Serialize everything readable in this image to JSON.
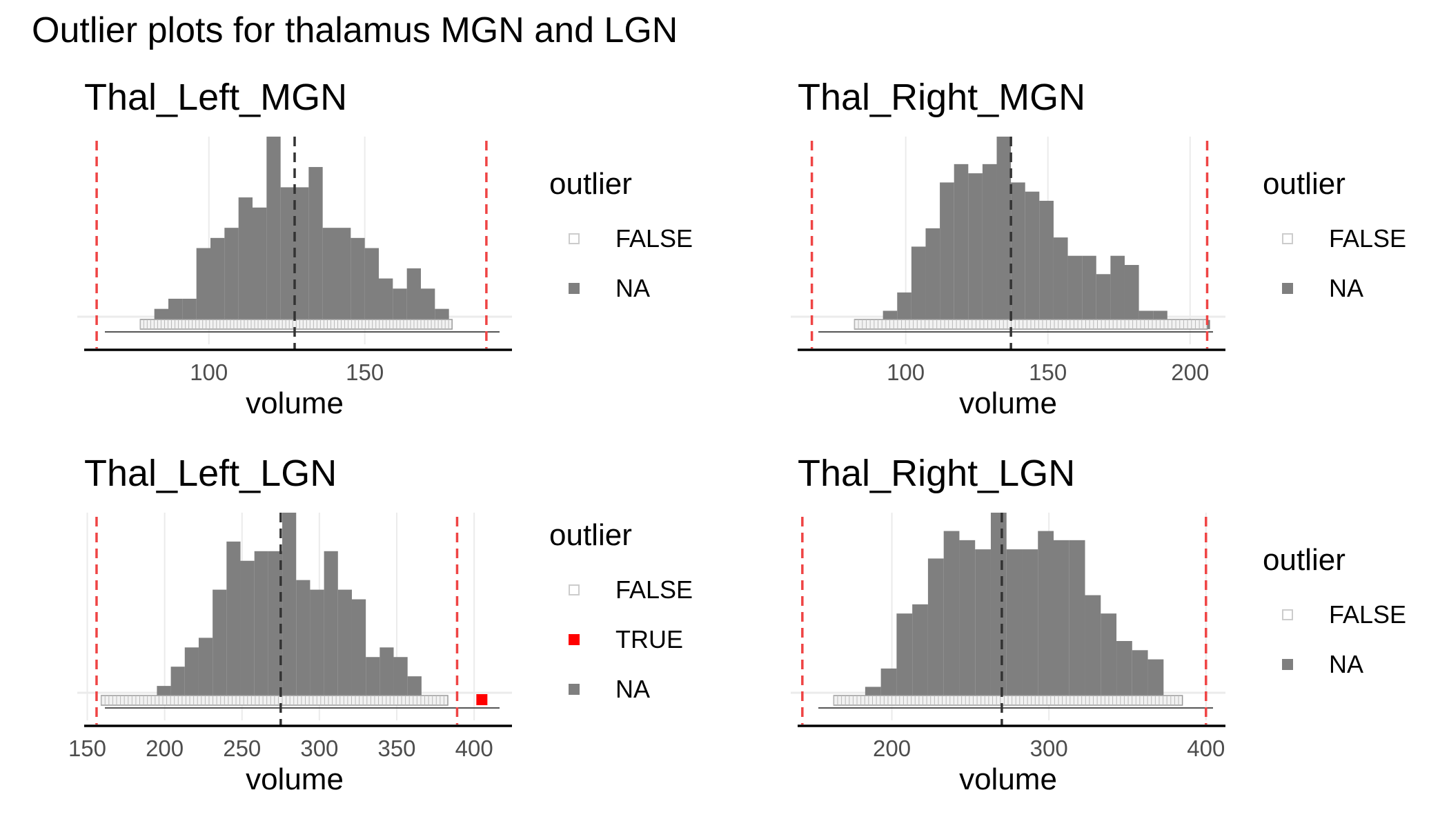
{
  "figure_title": "Outlier plots for thalamus MGN and LGN",
  "colors": {
    "bar": "#7f7f7f",
    "threshold_line": "#ef4444",
    "center_line": "#333333",
    "grid": "#ebebeb",
    "outlier_true": "#ff0000",
    "outlier_false_fill": "#ffffff",
    "outlier_false_stroke": "#cccccc"
  },
  "chart_data": [
    {
      "type": "bar",
      "title": "Thal_Left_MGN",
      "xlabel": "volume",
      "ylabel": "",
      "xlim": [
        60,
        195
      ],
      "xticks": [
        100,
        150
      ],
      "xtick_labels": [
        "100",
        "150"
      ],
      "bin_width": 4.5,
      "bins": [
        {
          "x": 78,
          "count": 1
        },
        {
          "x": 82.5,
          "count": 2
        },
        {
          "x": 87,
          "count": 3
        },
        {
          "x": 91.5,
          "count": 3
        },
        {
          "x": 96,
          "count": 8
        },
        {
          "x": 100.5,
          "count": 9
        },
        {
          "x": 105,
          "count": 10
        },
        {
          "x": 109.5,
          "count": 13
        },
        {
          "x": 114,
          "count": 12
        },
        {
          "x": 118.5,
          "count": 19
        },
        {
          "x": 123,
          "count": 14
        },
        {
          "x": 127.5,
          "count": 14
        },
        {
          "x": 132,
          "count": 16
        },
        {
          "x": 136.5,
          "count": 10
        },
        {
          "x": 141,
          "count": 10
        },
        {
          "x": 145.5,
          "count": 9
        },
        {
          "x": 150,
          "count": 8
        },
        {
          "x": 154.5,
          "count": 5
        },
        {
          "x": 159,
          "count": 4
        },
        {
          "x": 163.5,
          "count": 6
        },
        {
          "x": 168,
          "count": 4
        },
        {
          "x": 172.5,
          "count": 2
        },
        {
          "x": 177,
          "count": 0
        }
      ],
      "center_line": 127.5,
      "threshold_lines": [
        64,
        189
      ],
      "rug_range": [
        78,
        178
      ],
      "outliers": [],
      "legend": {
        "title": "outlier",
        "items": [
          {
            "label": "FALSE",
            "key": "false"
          },
          {
            "label": "NA",
            "key": "na"
          }
        ]
      },
      "grid": true
    },
    {
      "type": "bar",
      "title": "Thal_Right_MGN",
      "xlabel": "volume",
      "ylabel": "",
      "xlim": [
        62,
        210
      ],
      "xticks": [
        100,
        150,
        200
      ],
      "xtick_labels": [
        "100",
        "150",
        "200"
      ],
      "bin_width": 5,
      "bins": [
        {
          "x": 82,
          "count": 0
        },
        {
          "x": 87,
          "count": 1
        },
        {
          "x": 92,
          "count": 2
        },
        {
          "x": 97,
          "count": 4
        },
        {
          "x": 102,
          "count": 9
        },
        {
          "x": 107,
          "count": 11
        },
        {
          "x": 112,
          "count": 16
        },
        {
          "x": 117,
          "count": 18
        },
        {
          "x": 122,
          "count": 17
        },
        {
          "x": 127,
          "count": 18
        },
        {
          "x": 132,
          "count": 21
        },
        {
          "x": 137,
          "count": 16
        },
        {
          "x": 142,
          "count": 15
        },
        {
          "x": 147,
          "count": 14
        },
        {
          "x": 152,
          "count": 10
        },
        {
          "x": 157,
          "count": 8
        },
        {
          "x": 162,
          "count": 8
        },
        {
          "x": 167,
          "count": 6
        },
        {
          "x": 172,
          "count": 8
        },
        {
          "x": 177,
          "count": 7
        },
        {
          "x": 182,
          "count": 2
        },
        {
          "x": 187,
          "count": 2
        },
        {
          "x": 192,
          "count": 1
        },
        {
          "x": 197,
          "count": 0
        },
        {
          "x": 202,
          "count": 1
        }
      ],
      "center_line": 137,
      "threshold_lines": [
        67,
        206
      ],
      "rug_range": [
        82,
        206
      ],
      "outliers": [],
      "legend": {
        "title": "outlier",
        "items": [
          {
            "label": "FALSE",
            "key": "false"
          },
          {
            "label": "NA",
            "key": "na"
          }
        ]
      },
      "grid": true
    },
    {
      "type": "bar",
      "title": "Thal_Left_LGN",
      "xlabel": "volume",
      "ylabel": "",
      "xlim": [
        148,
        420
      ],
      "xticks": [
        150,
        200,
        250,
        300,
        350,
        400
      ],
      "xtick_labels": [
        "150",
        "200",
        "250",
        "300",
        "350",
        "400"
      ],
      "bin_width": 9,
      "bins": [
        {
          "x": 159,
          "count": 0
        },
        {
          "x": 168,
          "count": 0
        },
        {
          "x": 177,
          "count": 0
        },
        {
          "x": 186,
          "count": 1
        },
        {
          "x": 195,
          "count": 2
        },
        {
          "x": 204,
          "count": 4
        },
        {
          "x": 213,
          "count": 6
        },
        {
          "x": 222,
          "count": 7
        },
        {
          "x": 231,
          "count": 12
        },
        {
          "x": 240,
          "count": 17
        },
        {
          "x": 249,
          "count": 15
        },
        {
          "x": 258,
          "count": 16
        },
        {
          "x": 267,
          "count": 16
        },
        {
          "x": 276,
          "count": 20
        },
        {
          "x": 285,
          "count": 13
        },
        {
          "x": 294,
          "count": 12
        },
        {
          "x": 303,
          "count": 16
        },
        {
          "x": 312,
          "count": 12
        },
        {
          "x": 321,
          "count": 11
        },
        {
          "x": 330,
          "count": 5
        },
        {
          "x": 339,
          "count": 6
        },
        {
          "x": 348,
          "count": 5
        },
        {
          "x": 357,
          "count": 3
        },
        {
          "x": 366,
          "count": 1
        },
        {
          "x": 375,
          "count": 0
        }
      ],
      "center_line": 275,
      "threshold_lines": [
        156,
        389
      ],
      "rug_range": [
        159,
        383
      ],
      "outliers": [
        405
      ],
      "legend": {
        "title": "outlier",
        "items": [
          {
            "label": "FALSE",
            "key": "false"
          },
          {
            "label": "TRUE",
            "key": "true"
          },
          {
            "label": "NA",
            "key": "na"
          }
        ]
      },
      "grid": true
    },
    {
      "type": "bar",
      "title": "Thal_Right_LGN",
      "xlabel": "volume",
      "ylabel": "",
      "xlim": [
        140,
        408
      ],
      "xticks": [
        200,
        300,
        400
      ],
      "xtick_labels": [
        "200",
        "300",
        "400"
      ],
      "bin_width": 10,
      "bins": [
        {
          "x": 163,
          "count": 0
        },
        {
          "x": 173,
          "count": 0
        },
        {
          "x": 183,
          "count": 2
        },
        {
          "x": 193,
          "count": 4
        },
        {
          "x": 203,
          "count": 10
        },
        {
          "x": 213,
          "count": 11
        },
        {
          "x": 223,
          "count": 16
        },
        {
          "x": 233,
          "count": 19
        },
        {
          "x": 243,
          "count": 18
        },
        {
          "x": 253,
          "count": 17
        },
        {
          "x": 263,
          "count": 21
        },
        {
          "x": 273,
          "count": 17
        },
        {
          "x": 283,
          "count": 17
        },
        {
          "x": 293,
          "count": 19
        },
        {
          "x": 303,
          "count": 18
        },
        {
          "x": 313,
          "count": 18
        },
        {
          "x": 323,
          "count": 12
        },
        {
          "x": 333,
          "count": 10
        },
        {
          "x": 343,
          "count": 7
        },
        {
          "x": 353,
          "count": 6
        },
        {
          "x": 363,
          "count": 5
        },
        {
          "x": 373,
          "count": 0
        },
        {
          "x": 383,
          "count": 0
        }
      ],
      "center_line": 270,
      "threshold_lines": [
        143,
        400
      ],
      "rug_range": [
        163,
        385
      ],
      "outliers": [],
      "legend": {
        "title": "outlier",
        "items": [
          {
            "label": "FALSE",
            "key": "false"
          },
          {
            "label": "NA",
            "key": "na"
          }
        ]
      },
      "grid": true
    }
  ]
}
